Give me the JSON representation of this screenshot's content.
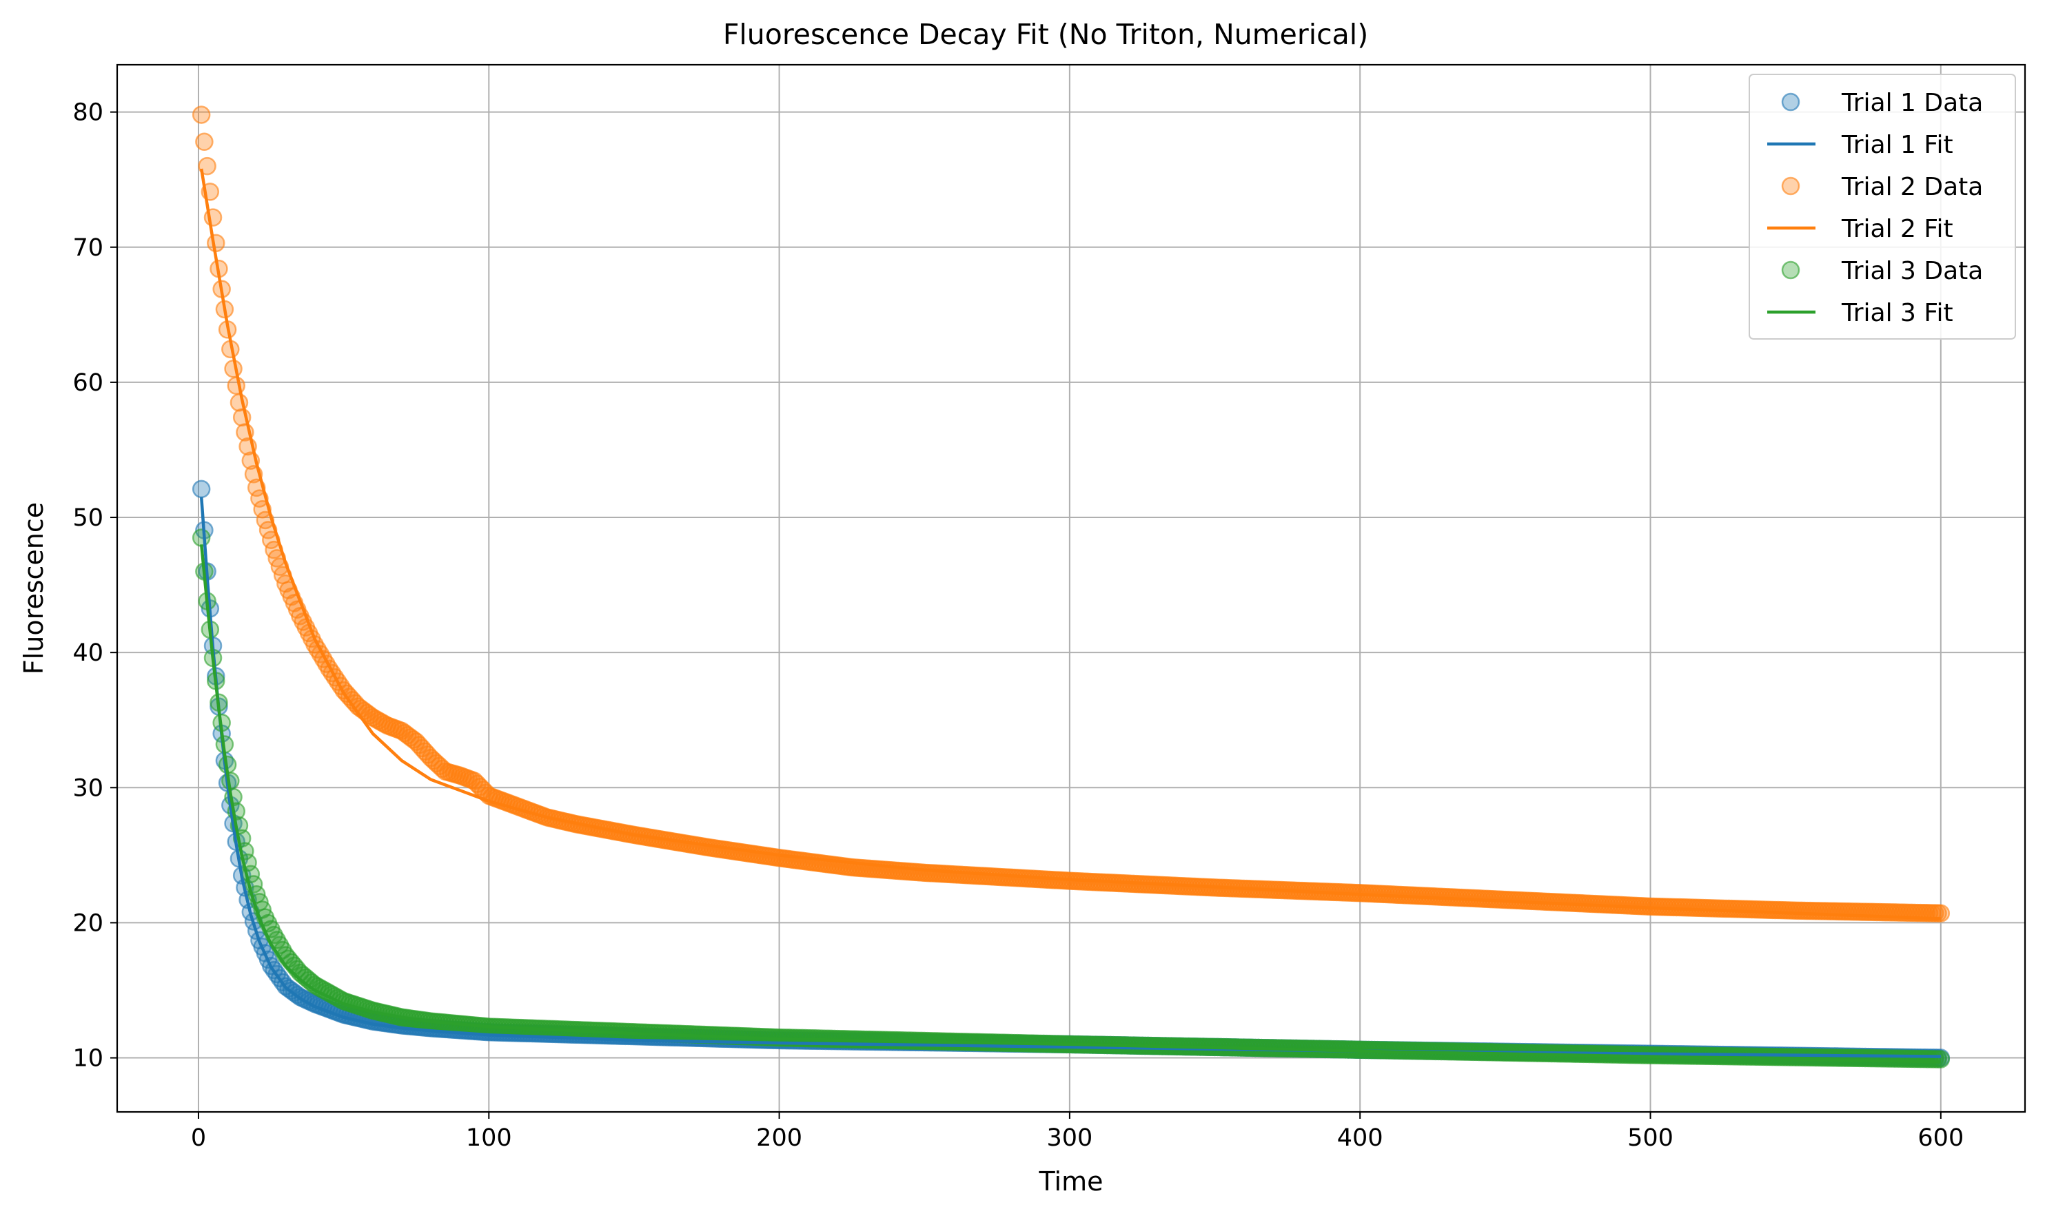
{
  "chart_data": {
    "type": "scatter",
    "title": "Fluorescence Decay Fit (No Triton, Numerical)",
    "xlabel": "Time",
    "ylabel": "Fluorescence",
    "xlim": [
      -28,
      629
    ],
    "ylim": [
      6,
      83.5
    ],
    "x_ticks": [
      0,
      100,
      200,
      300,
      400,
      500,
      600
    ],
    "y_ticks": [
      10,
      20,
      30,
      40,
      50,
      60,
      70,
      80
    ],
    "grid": true,
    "legend_position": "top-right",
    "series": [
      {
        "name": "Trial 1 Data",
        "kind": "scatter",
        "color": "#1f77b4",
        "alpha": 0.35,
        "x": [
          1,
          3,
          5,
          7,
          9,
          11,
          13,
          15,
          18,
          21,
          25,
          30,
          35,
          40,
          50,
          60,
          70,
          80,
          100,
          150,
          200,
          300,
          400,
          500,
          600
        ],
        "y": [
          52.1,
          46.0,
          40.5,
          36.0,
          32.0,
          28.7,
          26.0,
          23.5,
          20.8,
          18.7,
          16.8,
          15.3,
          14.5,
          14.0,
          13.2,
          12.7,
          12.4,
          12.2,
          11.9,
          11.6,
          11.3,
          11.0,
          10.6,
          10.3,
          10.0
        ]
      },
      {
        "name": "Trial 1 Fit",
        "kind": "line",
        "color": "#1f77b4",
        "x": [
          1,
          3,
          5,
          7,
          9,
          11,
          13,
          15,
          18,
          21,
          25,
          30,
          35,
          40,
          50,
          60,
          70,
          80,
          100,
          150,
          200,
          300,
          400,
          500,
          600
        ],
        "y": [
          51.5,
          45.6,
          40.3,
          35.8,
          31.9,
          28.6,
          25.8,
          23.3,
          20.6,
          18.6,
          16.7,
          15.2,
          14.4,
          13.8,
          13.0,
          12.5,
          12.2,
          12.0,
          11.7,
          11.3,
          11.1,
          10.8,
          10.5,
          10.3,
          10.1
        ]
      },
      {
        "name": "Trial 2 Data",
        "kind": "scatter",
        "color": "#ff7f0e",
        "alpha": 0.35,
        "x": [
          1,
          2,
          3,
          4,
          5,
          6,
          7,
          8,
          9,
          10,
          12,
          14,
          16,
          18,
          20,
          23,
          26,
          30,
          35,
          40,
          45,
          50,
          55,
          60,
          65,
          70,
          75,
          80,
          85,
          90,
          95,
          100,
          110,
          120,
          130,
          140,
          150,
          175,
          200,
          225,
          250,
          275,
          300,
          350,
          400,
          450,
          500,
          550,
          600
        ],
        "y": [
          79.8,
          77.8,
          76.0,
          74.1,
          72.2,
          70.3,
          68.4,
          66.9,
          65.4,
          63.9,
          61.0,
          58.5,
          56.3,
          54.2,
          52.2,
          49.8,
          47.6,
          45.1,
          42.7,
          40.6,
          38.8,
          37.2,
          36.0,
          35.2,
          34.6,
          34.2,
          33.4,
          32.2,
          31.2,
          30.9,
          30.5,
          29.4,
          28.6,
          27.8,
          27.3,
          26.9,
          26.5,
          25.6,
          24.8,
          24.1,
          23.7,
          23.4,
          23.1,
          22.6,
          22.2,
          21.7,
          21.2,
          20.9,
          20.7
        ]
      },
      {
        "name": "Trial 2 Fit",
        "kind": "line",
        "color": "#ff7f0e",
        "x": [
          1,
          5,
          10,
          15,
          20,
          25,
          30,
          40,
          50,
          60,
          70,
          80,
          90,
          100,
          120,
          150,
          200,
          250,
          300,
          400,
          500,
          600
        ],
        "y": [
          75.8,
          70.5,
          64.2,
          58.7,
          54.0,
          50.0,
          46.6,
          41.0,
          37.0,
          34.0,
          32.0,
          30.6,
          29.8,
          29.0,
          27.8,
          26.5,
          25.0,
          23.9,
          23.2,
          22.1,
          21.1,
          20.3
        ]
      },
      {
        "name": "Trial 3 Data",
        "kind": "scatter",
        "color": "#2ca02c",
        "alpha": 0.35,
        "x": [
          1,
          2,
          3,
          4,
          5,
          6,
          7,
          8,
          9,
          10,
          12,
          14,
          16,
          18,
          20,
          23,
          26,
          30,
          35,
          40,
          50,
          60,
          70,
          80,
          100,
          150,
          200,
          300,
          400,
          500,
          600
        ],
        "y": [
          48.5,
          46.0,
          43.8,
          41.7,
          39.6,
          37.9,
          36.3,
          34.8,
          33.2,
          31.7,
          29.3,
          27.2,
          25.3,
          23.6,
          22.1,
          20.4,
          19.1,
          17.6,
          16.3,
          15.4,
          14.2,
          13.5,
          13.0,
          12.7,
          12.3,
          11.9,
          11.5,
          11.0,
          10.6,
          10.2,
          9.9
        ]
      },
      {
        "name": "Trial 3 Fit",
        "kind": "line",
        "color": "#2ca02c",
        "x": [
          1,
          3,
          5,
          7,
          9,
          11,
          13,
          15,
          18,
          21,
          25,
          30,
          35,
          40,
          50,
          60,
          70,
          80,
          100,
          150,
          200,
          300,
          400,
          500,
          600
        ],
        "y": [
          48.0,
          43.6,
          39.5,
          35.8,
          32.5,
          29.6,
          27.1,
          24.9,
          22.3,
          20.3,
          18.4,
          16.8,
          15.8,
          15.0,
          14.0,
          13.4,
          13.0,
          12.7,
          12.3,
          11.8,
          11.4,
          11.0,
          10.5,
          10.1,
          9.7
        ]
      }
    ]
  }
}
